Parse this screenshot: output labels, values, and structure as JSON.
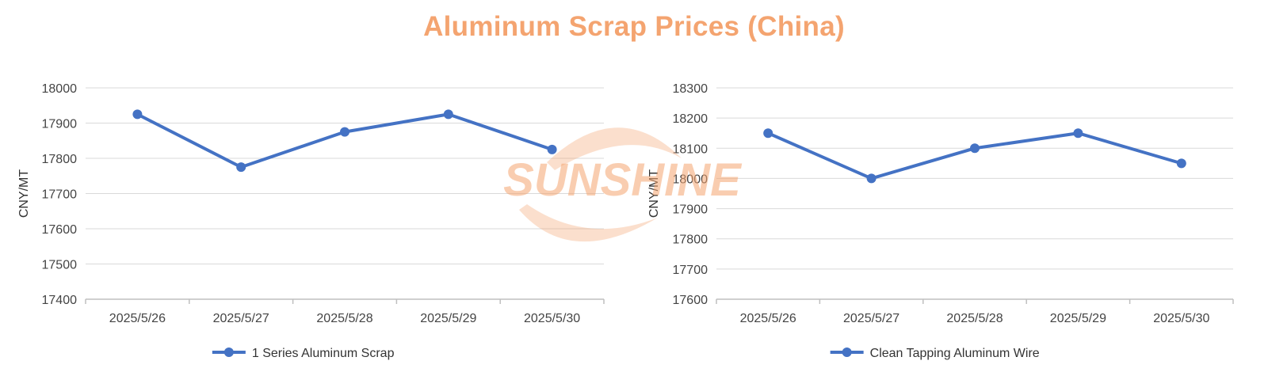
{
  "title": "Aluminum Scrap Prices (China)",
  "watermark": {
    "text": "SUNSHINE",
    "color": "#f4a470"
  },
  "series_color": "#4472c4",
  "chart_data": [
    {
      "type": "line",
      "categories": [
        "2025/5/26",
        "2025/5/27",
        "2025/5/28",
        "2025/5/29",
        "2025/5/30"
      ],
      "series": [
        {
          "name": "1 Series Aluminum Scrap",
          "values": [
            17925,
            17775,
            17875,
            17925,
            17825
          ]
        }
      ],
      "ylabel": "CNY/MT",
      "ylim": [
        17400,
        18000
      ],
      "yticks": [
        17400,
        17500,
        17600,
        17700,
        17800,
        17900,
        18000
      ],
      "grid": true,
      "legend": "bottom"
    },
    {
      "type": "line",
      "categories": [
        "2025/5/26",
        "2025/5/27",
        "2025/5/28",
        "2025/5/29",
        "2025/5/30"
      ],
      "series": [
        {
          "name": "Clean Tapping Aluminum Wire",
          "values": [
            18150,
            18000,
            18100,
            18150,
            18050
          ]
        }
      ],
      "ylabel": "CNY/MT",
      "ylim": [
        17600,
        18300
      ],
      "yticks": [
        17600,
        17700,
        17800,
        17900,
        18000,
        18100,
        18200,
        18300
      ],
      "grid": true,
      "legend": "bottom"
    }
  ]
}
